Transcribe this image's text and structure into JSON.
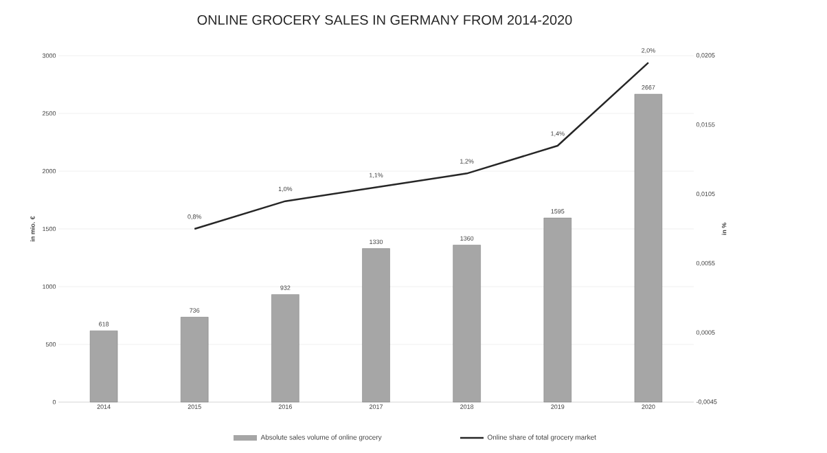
{
  "chart_data": {
    "type": "bar",
    "title": "ONLINE GROCERY SALES IN GERMANY FROM 2014-2020",
    "ylabel": "in mio. €",
    "y2label": "in %",
    "categories": [
      "2014",
      "2015",
      "2016",
      "2017",
      "2018",
      "2019",
      "2020"
    ],
    "series": [
      {
        "name": "Absolute sales volume of online grocery",
        "color": "#a6a6a6",
        "values": [
          618,
          736,
          932,
          1330,
          1360,
          1595,
          2667
        ]
      },
      {
        "name": "Online share of total grocery market",
        "type": "line",
        "axis": "y2",
        "color": "#262626",
        "values": [
          null,
          0.008,
          0.01,
          0.011,
          0.012,
          0.014,
          0.02
        ],
        "value_labels": [
          null,
          "0,8%",
          "1,0%",
          "1,1%",
          "1,2%",
          "1,4%",
          "2,0%"
        ]
      }
    ],
    "ylim": [
      0,
      3000
    ],
    "yticks": [
      0,
      500,
      1000,
      1500,
      2000,
      2500,
      3000
    ],
    "y2lim": [
      -0.0045,
      0.0205
    ],
    "y2ticks": [
      {
        "value": -0.0045,
        "label": "-0,0045"
      },
      {
        "value": 0.0005,
        "label": "0,0005"
      },
      {
        "value": 0.0055,
        "label": "0,0055"
      },
      {
        "value": 0.0105,
        "label": "0,0105"
      },
      {
        "value": 0.0155,
        "label": "0,0155"
      },
      {
        "value": 0.0205,
        "label": "0,0205"
      }
    ],
    "grid": "y",
    "legend": "bottom",
    "data_labels": true
  }
}
